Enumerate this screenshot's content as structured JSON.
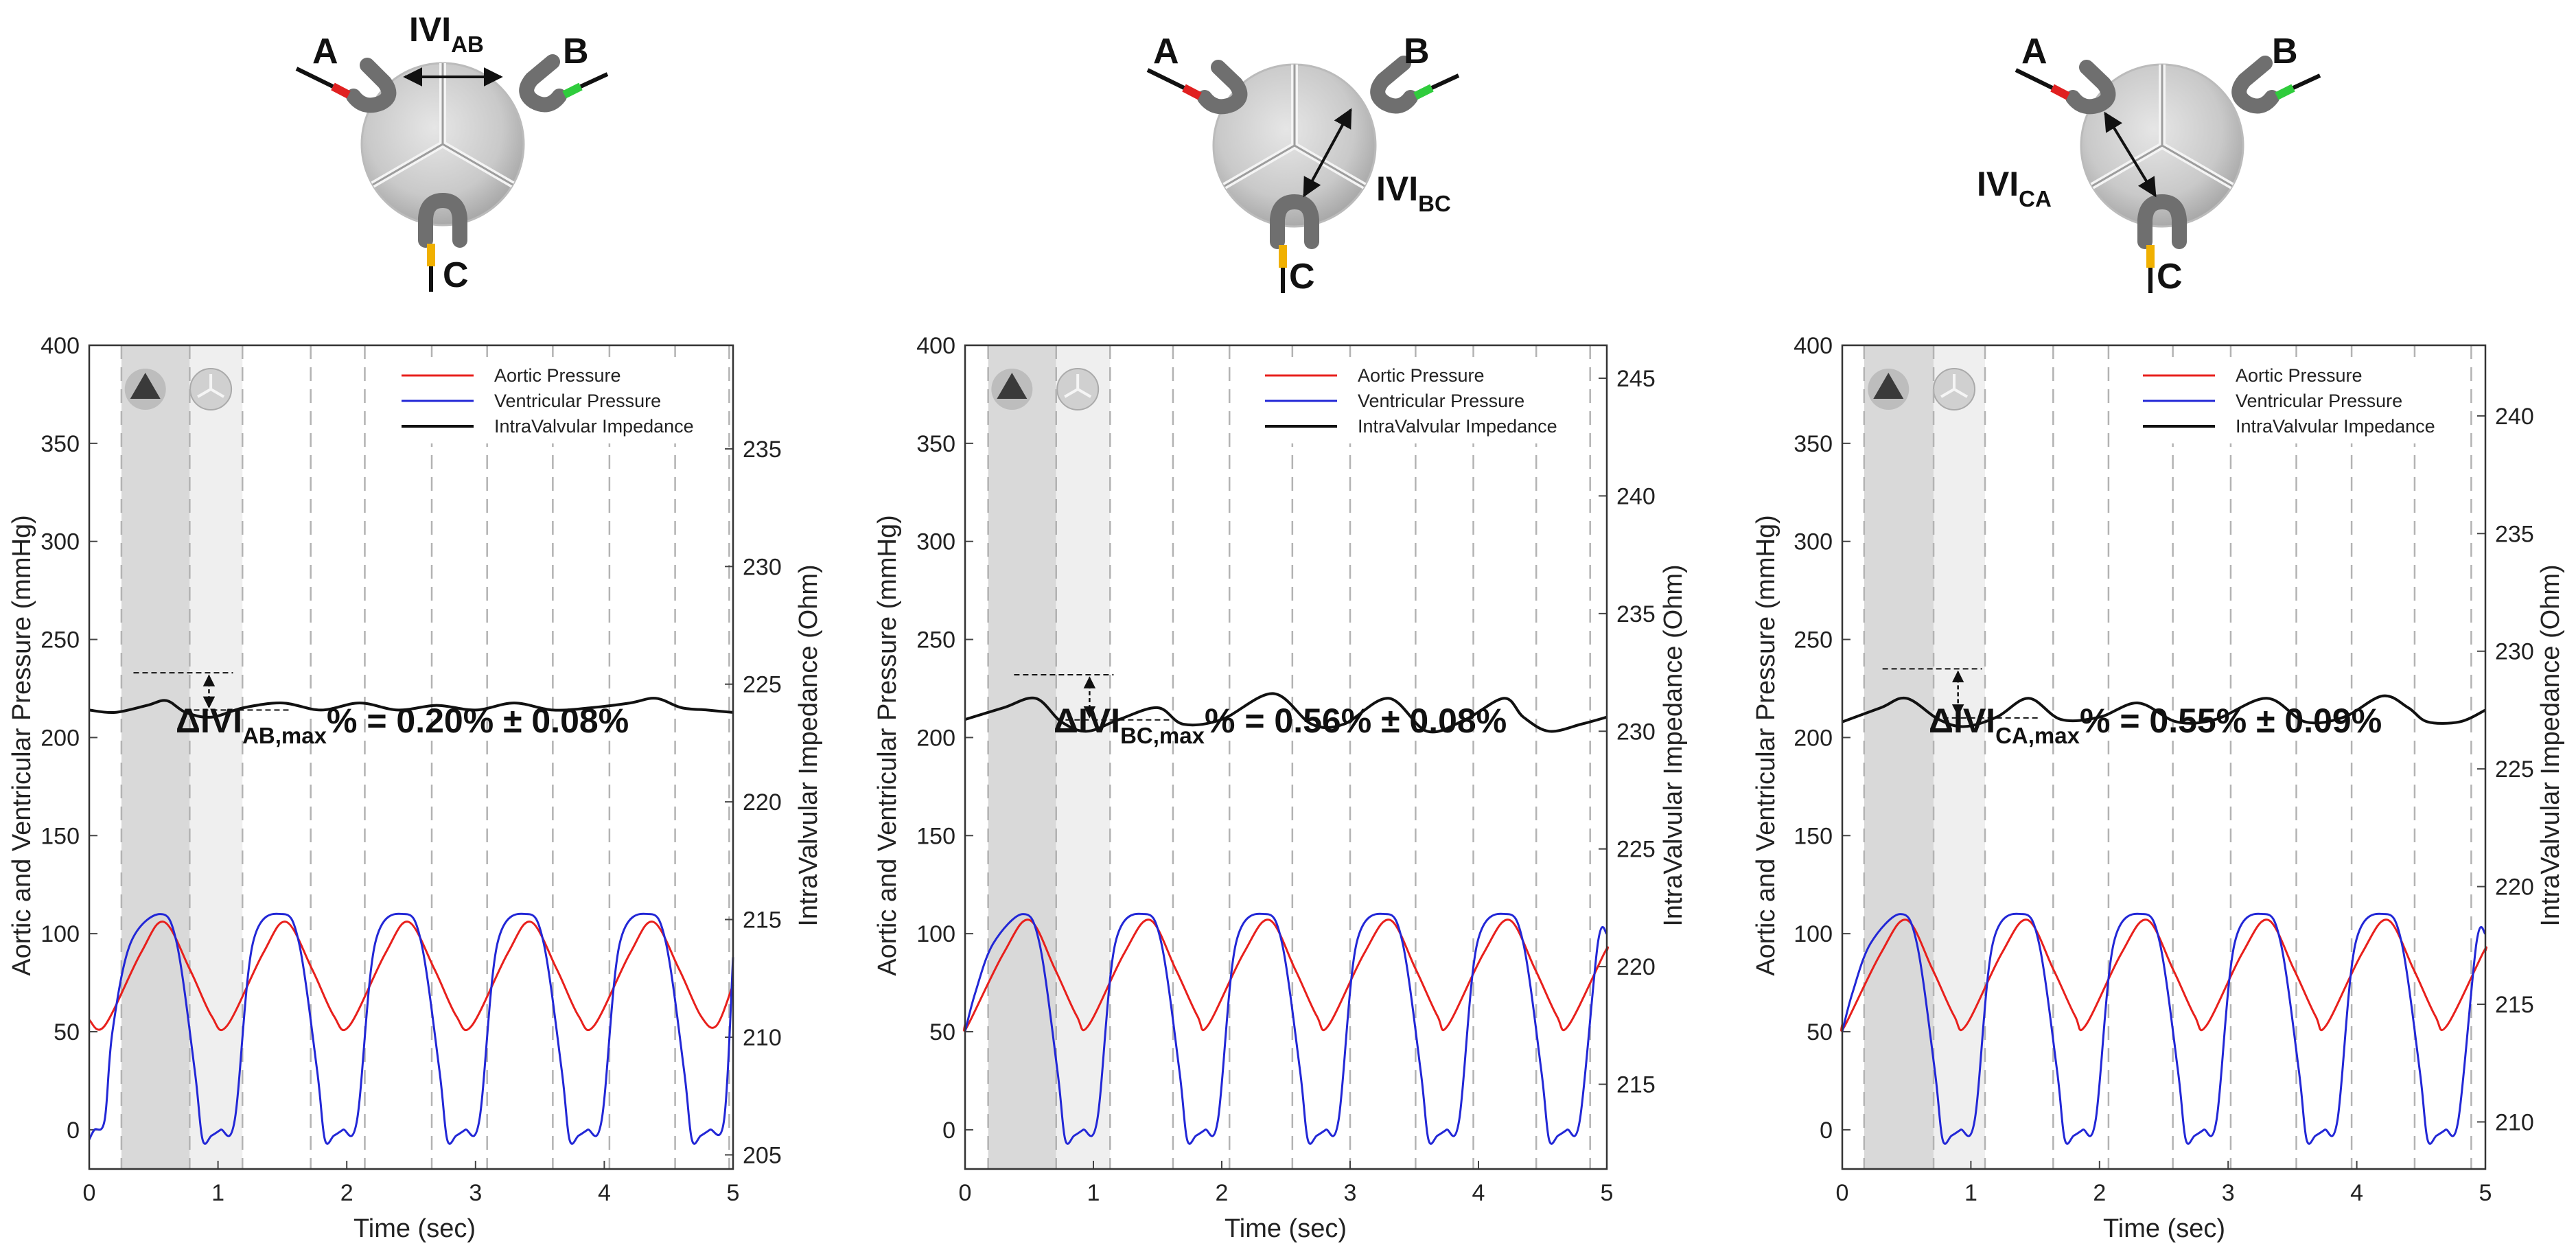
{
  "chart_data": [
    {
      "type": "line",
      "diagram": {
        "lead_labels": [
          "A",
          "B",
          "C"
        ],
        "ivi_label": "IVI",
        "ivi_subscript": "AB"
      },
      "title": "",
      "xlabel": "Time (sec)",
      "ylabel": "Aortic and Ventricular Pressure (mmHg)",
      "y2label": "IntraValvular Impedance (Ohm)",
      "xlim": [
        0,
        5
      ],
      "ylim": [
        -20,
        400
      ],
      "y2lim": [
        204.4,
        239.4
      ],
      "xticks": [
        "0",
        "1",
        "2",
        "3",
        "4",
        "5"
      ],
      "yticks": [
        "0",
        "50",
        "100",
        "150",
        "200",
        "250",
        "300",
        "350",
        "400"
      ],
      "y2ticks": [
        "205",
        "210",
        "215",
        "220",
        "225",
        "230",
        "235"
      ],
      "legend": [
        "Aortic Pressure",
        "Ventricular Pressure",
        "IntraValvular Impedance"
      ],
      "shaded_phases": {
        "systole": [
          0.25,
          0.78
        ],
        "diastole": [
          0.78,
          1.19
        ]
      },
      "beat_markers": [
        1.19,
        1.72,
        2.14,
        2.66,
        3.09,
        3.6,
        4.04,
        4.55,
        4.97
      ],
      "cycle_period": 0.95,
      "cycle_offset": 0.12,
      "series": [
        {
          "name": "Aortic Pressure",
          "color": "#e8201c",
          "axis": "left",
          "x": [
            0,
            0.12,
            0.4,
            0.58,
            0.78,
            0.95,
            1.07,
            1.35,
            1.53,
            1.73,
            1.9,
            2.02,
            2.3,
            2.48,
            2.68,
            2.85,
            2.97,
            3.25,
            3.43,
            3.63,
            3.8,
            3.92,
            4.2,
            4.38,
            4.58,
            4.75,
            4.87,
            5
          ],
          "values": [
            56,
            53,
            90,
            106,
            82,
            58,
            53,
            90,
            106,
            82,
            58,
            53,
            90,
            106,
            82,
            58,
            53,
            90,
            106,
            82,
            58,
            53,
            90,
            106,
            82,
            58,
            53,
            74
          ]
        },
        {
          "name": "Ventricular Pressure",
          "color": "#2227d6",
          "axis": "left",
          "x": [
            0,
            0.04,
            0.12,
            0.18,
            0.32,
            0.55,
            0.68,
            0.82,
            0.88,
            0.95,
            1.02,
            1.13,
            1.27,
            1.5,
            1.63,
            1.77,
            1.83,
            1.9,
            1.97,
            2.08,
            2.22,
            2.45,
            2.58,
            2.72,
            2.78,
            2.85,
            2.92,
            3.03,
            3.17,
            3.4,
            3.53,
            3.67,
            3.73,
            3.8,
            3.87,
            3.98,
            4.12,
            4.35,
            4.48,
            4.62,
            4.68,
            4.75,
            4.82,
            4.93,
            5
          ],
          "values": [
            -5,
            0,
            5,
            50,
            95,
            110,
            95,
            30,
            -5,
            -3,
            0,
            5,
            95,
            110,
            95,
            30,
            -5,
            -3,
            0,
            5,
            95,
            110,
            95,
            30,
            -5,
            -3,
            0,
            5,
            95,
            110,
            95,
            30,
            -5,
            -3,
            0,
            5,
            95,
            110,
            95,
            30,
            -5,
            -3,
            0,
            5,
            88
          ]
        },
        {
          "name": "IntraValvular Impedance",
          "color": "#111111",
          "axis": "right",
          "x": [
            0,
            0.2,
            0.45,
            0.6,
            0.75,
            0.95,
            1.2,
            1.5,
            1.8,
            2.1,
            2.4,
            2.7,
            3.0,
            3.3,
            3.6,
            3.9,
            4.2,
            4.4,
            4.6,
            4.8,
            5
          ],
          "values": [
            223.9,
            223.8,
            224.1,
            224.3,
            223.8,
            223.6,
            224.0,
            224.2,
            223.9,
            224.2,
            223.9,
            224.1,
            223.9,
            224.2,
            223.9,
            224.0,
            224.2,
            224.4,
            224.0,
            223.9,
            223.8
          ]
        }
      ],
      "annotation": {
        "text_main": "ΔIVI",
        "text_sub": "AB,max",
        "text_tail": "% = 0.20% ± 0.08%",
        "x": 0.93,
        "y1": 233,
        "y2": 214
      }
    },
    {
      "type": "line",
      "diagram": {
        "lead_labels": [
          "A",
          "B",
          "C"
        ],
        "ivi_label": "IVI",
        "ivi_subscript": "BC"
      },
      "title": "",
      "xlabel": "Time (sec)",
      "ylabel": "Aortic and Ventricular Pressure (mmHg)",
      "y2label": "IntraValvular Impedance (Ohm)",
      "xlim": [
        0,
        5
      ],
      "ylim": [
        -20,
        400
      ],
      "y2lim": [
        211.4,
        246.4
      ],
      "xticks": [
        "0",
        "1",
        "2",
        "3",
        "4",
        "5"
      ],
      "yticks": [
        "0",
        "50",
        "100",
        "150",
        "200",
        "250",
        "300",
        "350",
        "400"
      ],
      "y2ticks": [
        "215",
        "220",
        "225",
        "230",
        "235",
        "240",
        "245"
      ],
      "legend": [
        "Aortic Pressure",
        "Ventricular Pressure",
        "IntraValvular Impedance"
      ],
      "shaded_phases": {
        "systole": [
          0.18,
          0.71
        ],
        "diastole": [
          0.71,
          1.13
        ]
      },
      "beat_markers": [
        1.13,
        1.62,
        2.06,
        2.55,
        3.0,
        3.51,
        3.96,
        4.45,
        4.87
      ],
      "cycle_period": 0.935,
      "cycle_offset": 0.02,
      "series": [
        {
          "name": "Aortic Pressure",
          "color": "#e8201c",
          "axis": "left",
          "x": [
            0,
            0.02,
            0.3,
            0.5,
            0.7,
            0.87,
            0.96,
            1.24,
            1.44,
            1.64,
            1.81,
            1.89,
            2.17,
            2.37,
            2.57,
            2.74,
            2.83,
            3.11,
            3.31,
            3.51,
            3.68,
            3.76,
            4.04,
            4.24,
            4.44,
            4.61,
            4.7,
            4.98,
            5
          ],
          "values": [
            54,
            53,
            90,
            107,
            82,
            58,
            53,
            90,
            107,
            82,
            58,
            53,
            90,
            107,
            82,
            58,
            53,
            90,
            107,
            82,
            58,
            53,
            90,
            107,
            82,
            58,
            53,
            90,
            91
          ]
        },
        {
          "name": "Ventricular Pressure",
          "color": "#2227d6",
          "axis": "left",
          "x": [
            0,
            0.08,
            0.22,
            0.45,
            0.58,
            0.72,
            0.78,
            0.85,
            0.92,
            1.03,
            1.17,
            1.4,
            1.53,
            1.67,
            1.73,
            1.8,
            1.87,
            1.97,
            2.11,
            2.34,
            2.47,
            2.61,
            2.67,
            2.74,
            2.81,
            2.91,
            3.05,
            3.28,
            3.41,
            3.55,
            3.61,
            3.68,
            3.75,
            3.85,
            3.99,
            4.22,
            4.35,
            4.49,
            4.55,
            4.62,
            4.69,
            4.79,
            4.93,
            5
          ],
          "values": [
            50,
            70,
            95,
            110,
            95,
            30,
            -5,
            -3,
            0,
            5,
            95,
            110,
            95,
            30,
            -5,
            -3,
            0,
            5,
            95,
            110,
            95,
            30,
            -5,
            -3,
            0,
            5,
            95,
            110,
            95,
            30,
            -5,
            -3,
            0,
            5,
            95,
            110,
            95,
            30,
            -5,
            -3,
            0,
            5,
            95,
            100
          ]
        },
        {
          "name": "IntraValvular Impedance",
          "color": "#111111",
          "axis": "right",
          "x": [
            0,
            0.3,
            0.55,
            0.75,
            0.95,
            1.2,
            1.5,
            1.7,
            2.0,
            2.4,
            2.7,
            2.95,
            3.3,
            3.6,
            3.9,
            4.2,
            4.35,
            4.55,
            4.8,
            5
          ],
          "values": [
            230.5,
            231.0,
            231.4,
            230.4,
            230.0,
            230.5,
            231.0,
            230.3,
            230.5,
            231.6,
            230.3,
            230.3,
            231.4,
            230.0,
            230.5,
            231.4,
            230.6,
            230.0,
            230.3,
            230.6
          ]
        }
      ],
      "annotation": {
        "text_main": "ΔIVI",
        "text_sub": "BC,max",
        "text_tail": "% = 0.56% ± 0.08%",
        "x": 0.97,
        "y1": 232,
        "y2": 209
      }
    },
    {
      "type": "line",
      "diagram": {
        "lead_labels": [
          "A",
          "B",
          "C"
        ],
        "ivi_label": "IVI",
        "ivi_subscript": "CA"
      },
      "title": "",
      "xlabel": "Time (sec)",
      "ylabel": "Aortic and Ventricular Pressure (mmHg)",
      "y2label": "IntraValvular Impedance (Ohm)",
      "xlim": [
        0,
        5
      ],
      "ylim": [
        -20,
        400
      ],
      "y2lim": [
        208.0,
        243.0
      ],
      "xticks": [
        "0",
        "1",
        "2",
        "3",
        "4",
        "5"
      ],
      "yticks": [
        "0",
        "50",
        "100",
        "150",
        "200",
        "250",
        "300",
        "350",
        "400"
      ],
      "y2ticks": [
        "210",
        "215",
        "220",
        "225",
        "230",
        "235",
        "240"
      ],
      "legend": [
        "Aortic Pressure",
        "Ventricular Pressure",
        "IntraValvular Impedance"
      ],
      "shaded_phases": {
        "systole": [
          0.17,
          0.71
        ],
        "diastole": [
          0.71,
          1.11
        ]
      },
      "beat_markers": [
        1.11,
        1.64,
        2.07,
        2.57,
        3.02,
        3.53,
        3.96,
        4.45,
        4.89
      ],
      "cycle_period": 0.935,
      "cycle_offset": 0.02,
      "series": [
        {
          "name": "Aortic Pressure",
          "color": "#e8201c",
          "axis": "left",
          "x": [
            0,
            0.02,
            0.3,
            0.5,
            0.7,
            0.87,
            0.96,
            1.24,
            1.44,
            1.64,
            1.81,
            1.89,
            2.17,
            2.37,
            2.57,
            2.74,
            2.83,
            3.11,
            3.31,
            3.51,
            3.68,
            3.76,
            4.04,
            4.24,
            4.44,
            4.61,
            4.7,
            4.98,
            5
          ],
          "values": [
            54,
            53,
            90,
            107,
            82,
            58,
            53,
            90,
            107,
            82,
            58,
            53,
            90,
            107,
            82,
            58,
            53,
            90,
            107,
            82,
            58,
            53,
            90,
            107,
            82,
            58,
            53,
            90,
            91
          ]
        },
        {
          "name": "Ventricular Pressure",
          "color": "#2227d6",
          "axis": "left",
          "x": [
            0,
            0.08,
            0.22,
            0.45,
            0.58,
            0.72,
            0.78,
            0.85,
            0.92,
            1.03,
            1.17,
            1.4,
            1.53,
            1.67,
            1.73,
            1.8,
            1.87,
            1.97,
            2.11,
            2.34,
            2.47,
            2.61,
            2.67,
            2.74,
            2.81,
            2.91,
            3.05,
            3.28,
            3.41,
            3.55,
            3.61,
            3.68,
            3.75,
            3.85,
            3.99,
            4.22,
            4.35,
            4.49,
            4.55,
            4.62,
            4.69,
            4.79,
            4.93,
            5
          ],
          "values": [
            50,
            70,
            95,
            110,
            95,
            30,
            -5,
            -3,
            0,
            5,
            95,
            110,
            95,
            30,
            -5,
            -3,
            0,
            5,
            95,
            110,
            95,
            30,
            -5,
            -3,
            0,
            5,
            95,
            110,
            95,
            30,
            -5,
            -3,
            0,
            5,
            95,
            110,
            95,
            30,
            -5,
            -3,
            0,
            5,
            95,
            100
          ]
        },
        {
          "name": "IntraValvular Impedance",
          "color": "#111111",
          "axis": "right",
          "x": [
            0,
            0.3,
            0.5,
            0.75,
            0.95,
            1.2,
            1.45,
            1.7,
            2.0,
            2.3,
            2.6,
            2.9,
            3.3,
            3.6,
            3.9,
            4.2,
            4.4,
            4.55,
            4.8,
            5
          ],
          "values": [
            227.0,
            227.6,
            228.0,
            227.1,
            226.8,
            227.2,
            228.0,
            227.1,
            227.2,
            227.8,
            227.0,
            227.1,
            228.0,
            227.0,
            227.2,
            228.1,
            227.6,
            227.0,
            227.0,
            227.5
          ]
        }
      ],
      "annotation": {
        "text_main": "ΔIVI",
        "text_sub": "CA,max",
        "text_tail": "% = 0.55% ± 0.09%",
        "x": 0.9,
        "y1": 235,
        "y2": 210
      }
    }
  ]
}
